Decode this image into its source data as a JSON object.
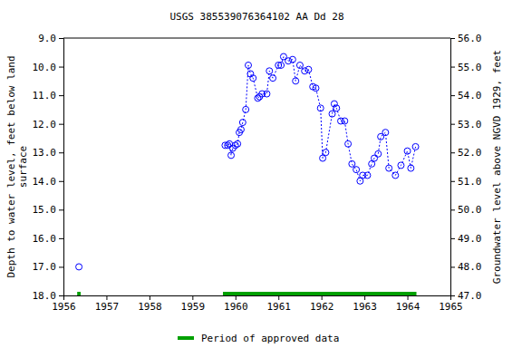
{
  "chart_data": {
    "type": "line",
    "title": "USGS 385539076364102 AA Dd  28",
    "y_label": "Depth to water level, feet below land\nsurface",
    "y2_label": "Groundwater level above NGVD 1929, feet",
    "x": [
      1956.36,
      null,
      1959.76,
      1959.82,
      1959.86,
      1959.9,
      1959.94,
      1960.0,
      1960.05,
      1960.09,
      1960.13,
      1960.17,
      1960.24,
      1960.3,
      1960.35,
      1960.41,
      1960.52,
      1960.56,
      1960.62,
      1960.73,
      1960.79,
      1960.87,
      1961.0,
      1961.06,
      1961.12,
      1961.23,
      1961.33,
      1961.4,
      1961.5,
      1961.61,
      1961.7,
      1961.8,
      1961.87,
      1961.98,
      1962.03,
      1962.1,
      1962.25,
      1962.3,
      1962.35,
      1962.45,
      1962.54,
      1962.62,
      1962.71,
      1962.81,
      1962.9,
      1962.96,
      1963.07,
      1963.17,
      1963.23,
      1963.32,
      1963.38,
      1963.49,
      1963.57,
      1963.72,
      1963.85,
      1964.0,
      1964.08,
      1964.19
    ],
    "series": [
      {
        "color": "#0000ff",
        "marker": "open-circle",
        "line_style": "dashed",
        "values": [
          17.0,
          null,
          12.75,
          12.75,
          12.7,
          13.1,
          12.85,
          12.75,
          12.7,
          12.3,
          12.2,
          11.95,
          11.5,
          9.95,
          10.25,
          10.4,
          11.1,
          11.05,
          10.95,
          10.95,
          10.15,
          10.4,
          9.95,
          9.95,
          9.65,
          9.8,
          9.75,
          10.5,
          9.95,
          10.15,
          10.1,
          10.7,
          10.75,
          11.45,
          13.2,
          13.0,
          11.65,
          11.3,
          11.45,
          11.9,
          11.9,
          12.7,
          13.4,
          13.6,
          14.0,
          13.8,
          13.8,
          13.4,
          13.2,
          13.05,
          12.45,
          12.3,
          13.55,
          13.8,
          13.45,
          12.95,
          13.55,
          12.8
        ]
      }
    ],
    "approved_label": "Period of approved data",
    "approved_color": "#00a000",
    "approved_periods": [
      [
        1956.32,
        1956.4
      ],
      [
        1959.71,
        1964.21
      ]
    ],
    "xlim": [
      1956,
      1965
    ],
    "xticks": [
      1956,
      1957,
      1958,
      1959,
      1960,
      1961,
      1962,
      1963,
      1964,
      1965
    ],
    "ylim": [
      18.0,
      9.0
    ],
    "yticks": [
      {
        "value": 9,
        "label": "9.0"
      },
      {
        "value": 10,
        "label": "10.0"
      },
      {
        "value": 11,
        "label": "11.0"
      },
      {
        "value": 12,
        "label": "12.0"
      },
      {
        "value": 13,
        "label": "13.0"
      },
      {
        "value": 14,
        "label": "14.0"
      },
      {
        "value": 15,
        "label": "15.0"
      },
      {
        "value": 16,
        "label": "16.0"
      },
      {
        "value": 17,
        "label": "17.0"
      },
      {
        "value": 18,
        "label": "18.0"
      }
    ],
    "y2lim": [
      47.0,
      56.0
    ],
    "y2ticks": [
      {
        "value": 47,
        "label": "47.0"
      },
      {
        "value": 48,
        "label": "48.0"
      },
      {
        "value": 49,
        "label": "49.0"
      },
      {
        "value": 50,
        "label": "50.0"
      },
      {
        "value": 51,
        "label": "51.0"
      },
      {
        "value": 52,
        "label": "52.0"
      },
      {
        "value": 53,
        "label": "53.0"
      },
      {
        "value": 54,
        "label": "54.0"
      },
      {
        "value": 55,
        "label": "55.0"
      },
      {
        "value": 56,
        "label": "56.0"
      }
    ],
    "grid": false
  }
}
